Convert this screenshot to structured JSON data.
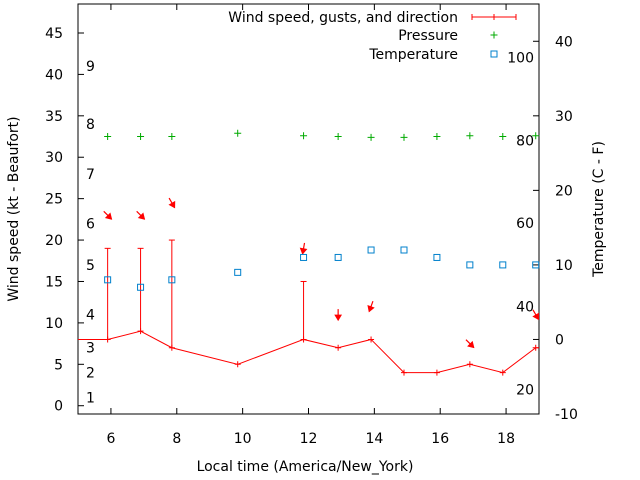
{
  "chart_data": {
    "type": "line",
    "xlabel": "Local time (America/New_York)",
    "ylabel_left": "Wind speed (kt - Beaufort)",
    "ylabel_right": "Temperature (C - F)",
    "xlim": [
      5,
      19
    ],
    "ylim_left": [
      -1,
      48.5
    ],
    "ylim_right": [
      -10,
      45
    ],
    "x_ticks": [
      6,
      8,
      10,
      12,
      14,
      16,
      18
    ],
    "y_ticks_left": [
      0,
      5,
      10,
      15,
      20,
      25,
      30,
      35,
      40,
      45
    ],
    "y_ticks_right": [
      -10,
      0,
      10,
      20,
      30,
      40
    ],
    "beaufort_labels": [
      {
        "label": "1",
        "kt": 1
      },
      {
        "label": "2",
        "kt": 4
      },
      {
        "label": "3",
        "kt": 7
      },
      {
        "label": "4",
        "kt": 11
      },
      {
        "label": "5",
        "kt": 17
      },
      {
        "label": "6",
        "kt": 22
      },
      {
        "label": "7",
        "kt": 28
      },
      {
        "label": "8",
        "kt": 34
      },
      {
        "label": "9",
        "kt": 41
      }
    ],
    "fahrenheit_labels": [
      {
        "label": "20",
        "celsius": -6.7
      },
      {
        "label": "40",
        "celsius": 4.4
      },
      {
        "label": "60",
        "celsius": 15.6
      },
      {
        "label": "80",
        "celsius": 26.7
      },
      {
        "label": "100",
        "celsius": 37.8
      }
    ],
    "legend": {
      "position": "top-right",
      "wind_label": "Wind speed, gusts, and direction",
      "pressure_label": "Pressure",
      "temperature_label": "Temperature"
    },
    "colors": {
      "wind": "#ff0000",
      "pressure": "#00aa00",
      "temperature": "#0080cc"
    },
    "series": {
      "wind": [
        {
          "x": 5,
          "y": 8
        },
        {
          "x": 5.9,
          "y": 8
        },
        {
          "x": 6.9,
          "y": 9
        },
        {
          "x": 7.85,
          "y": 7
        },
        {
          "x": 9.85,
          "y": 5
        },
        {
          "x": 11.85,
          "y": 8
        },
        {
          "x": 12.9,
          "y": 7
        },
        {
          "x": 13.9,
          "y": 8
        },
        {
          "x": 14.9,
          "y": 4
        },
        {
          "x": 15.9,
          "y": 4
        },
        {
          "x": 16.9,
          "y": 5
        },
        {
          "x": 17.9,
          "y": 4
        },
        {
          "x": 18.9,
          "y": 7
        },
        {
          "x": 19,
          "y": 7
        }
      ],
      "gusts": [
        {
          "x": 5.9,
          "low": 8,
          "high": 19
        },
        {
          "x": 6.9,
          "low": 9,
          "high": 19
        },
        {
          "x": 7.85,
          "low": 7,
          "high": 20
        },
        {
          "x": 11.85,
          "low": 8,
          "high": 15
        }
      ],
      "pressure": [
        {
          "x": 5.9,
          "y": 32.5
        },
        {
          "x": 6.9,
          "y": 32.5
        },
        {
          "x": 7.85,
          "y": 32.5
        },
        {
          "x": 9.85,
          "y": 32.9
        },
        {
          "x": 11.85,
          "y": 32.6
        },
        {
          "x": 12.9,
          "y": 32.5
        },
        {
          "x": 13.9,
          "y": 32.4
        },
        {
          "x": 14.9,
          "y": 32.4
        },
        {
          "x": 15.9,
          "y": 32.5
        },
        {
          "x": 16.9,
          "y": 32.6
        },
        {
          "x": 17.9,
          "y": 32.5
        },
        {
          "x": 18.9,
          "y": 32.6
        }
      ],
      "temperature": [
        {
          "x": 5.9,
          "celsius": 8
        },
        {
          "x": 6.9,
          "celsius": 7
        },
        {
          "x": 7.85,
          "celsius": 8
        },
        {
          "x": 9.85,
          "celsius": 9
        },
        {
          "x": 11.85,
          "celsius": 11
        },
        {
          "x": 12.9,
          "celsius": 11
        },
        {
          "x": 13.9,
          "celsius": 12
        },
        {
          "x": 14.9,
          "celsius": 12
        },
        {
          "x": 15.9,
          "celsius": 11
        },
        {
          "x": 16.9,
          "celsius": 10
        },
        {
          "x": 17.9,
          "celsius": 10
        },
        {
          "x": 18.9,
          "celsius": 10
        }
      ],
      "wind_direction_arrows": [
        {
          "x": 5.9,
          "y_kt": 23,
          "from_deg": 315
        },
        {
          "x": 6.9,
          "y_kt": 23,
          "from_deg": 315
        },
        {
          "x": 7.85,
          "y_kt": 24.5,
          "from_deg": 330
        },
        {
          "x": 11.85,
          "y_kt": 19,
          "from_deg": 10
        },
        {
          "x": 12.9,
          "y_kt": 11,
          "from_deg": 0
        },
        {
          "x": 13.9,
          "y_kt": 12,
          "from_deg": 20
        },
        {
          "x": 16.9,
          "y_kt": 7.5,
          "from_deg": 315
        },
        {
          "x": 18.9,
          "y_kt": 11,
          "from_deg": 330
        }
      ]
    }
  }
}
